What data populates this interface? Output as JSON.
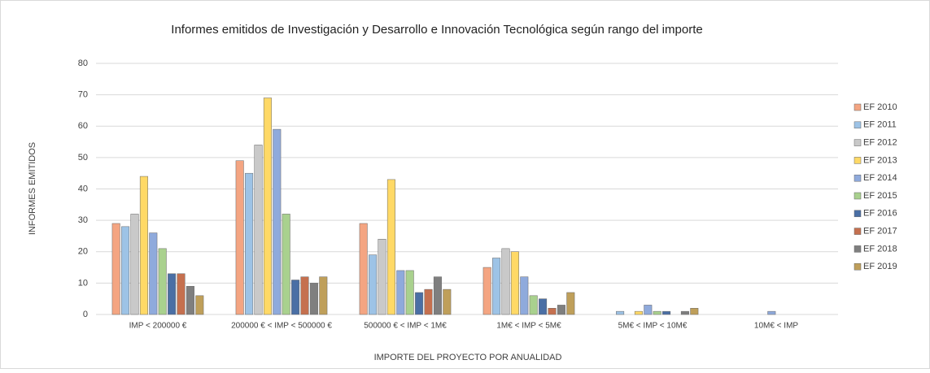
{
  "chart_data": {
    "type": "bar",
    "title": "Informes emitidos  de Investigación  y Desarrollo e Innovación  Tecnológica  según rango del importe",
    "y_label": "INFORMES EMITIDOS",
    "x_label": "IMPORTE DEL PROYECTO POR ANUALIDAD",
    "categories": [
      "IMP  < 200000 €",
      "200000 € < IMP  < 500000 €",
      "500000 € < IMP  < 1M€",
      "1M€  < IMP  < 5M€",
      "5M€  < IMP  < 10M€",
      "10M€  < IMP"
    ],
    "series": [
      {
        "name": "EF 2010",
        "color": "#f4a582",
        "values": [
          29,
          49,
          29,
          15,
          0,
          0
        ]
      },
      {
        "name": "EF 2011",
        "color": "#9dc3e6",
        "values": [
          28,
          45,
          19,
          18,
          1,
          0
        ]
      },
      {
        "name": "EF 2012",
        "color": "#c9c9c9",
        "values": [
          32,
          54,
          24,
          21,
          0,
          0
        ]
      },
      {
        "name": "EF 2013",
        "color": "#ffd966",
        "values": [
          44,
          69,
          43,
          20,
          1,
          0
        ]
      },
      {
        "name": "EF 2014",
        "color": "#8faadc",
        "values": [
          26,
          59,
          14,
          12,
          3,
          1
        ]
      },
      {
        "name": "EF 2015",
        "color": "#a9d18e",
        "values": [
          21,
          32,
          14,
          6,
          1,
          0
        ]
      },
      {
        "name": "EF 2016",
        "color": "#4a6fa5",
        "values": [
          13,
          11,
          7,
          5,
          1,
          0
        ]
      },
      {
        "name": "EF 2017",
        "color": "#c5704f",
        "values": [
          13,
          12,
          8,
          2,
          0,
          0
        ]
      },
      {
        "name": "EF 2018",
        "color": "#7f7f7f",
        "values": [
          9,
          10,
          12,
          3,
          1,
          0
        ]
      },
      {
        "name": "EF 2019",
        "color": "#bf9f5a",
        "values": [
          6,
          12,
          8,
          7,
          2,
          0
        ]
      }
    ],
    "ylim": [
      0,
      80
    ],
    "yticks": [
      0,
      10,
      20,
      30,
      40,
      50,
      60,
      70,
      80
    ],
    "grid": true,
    "legend": "right"
  }
}
